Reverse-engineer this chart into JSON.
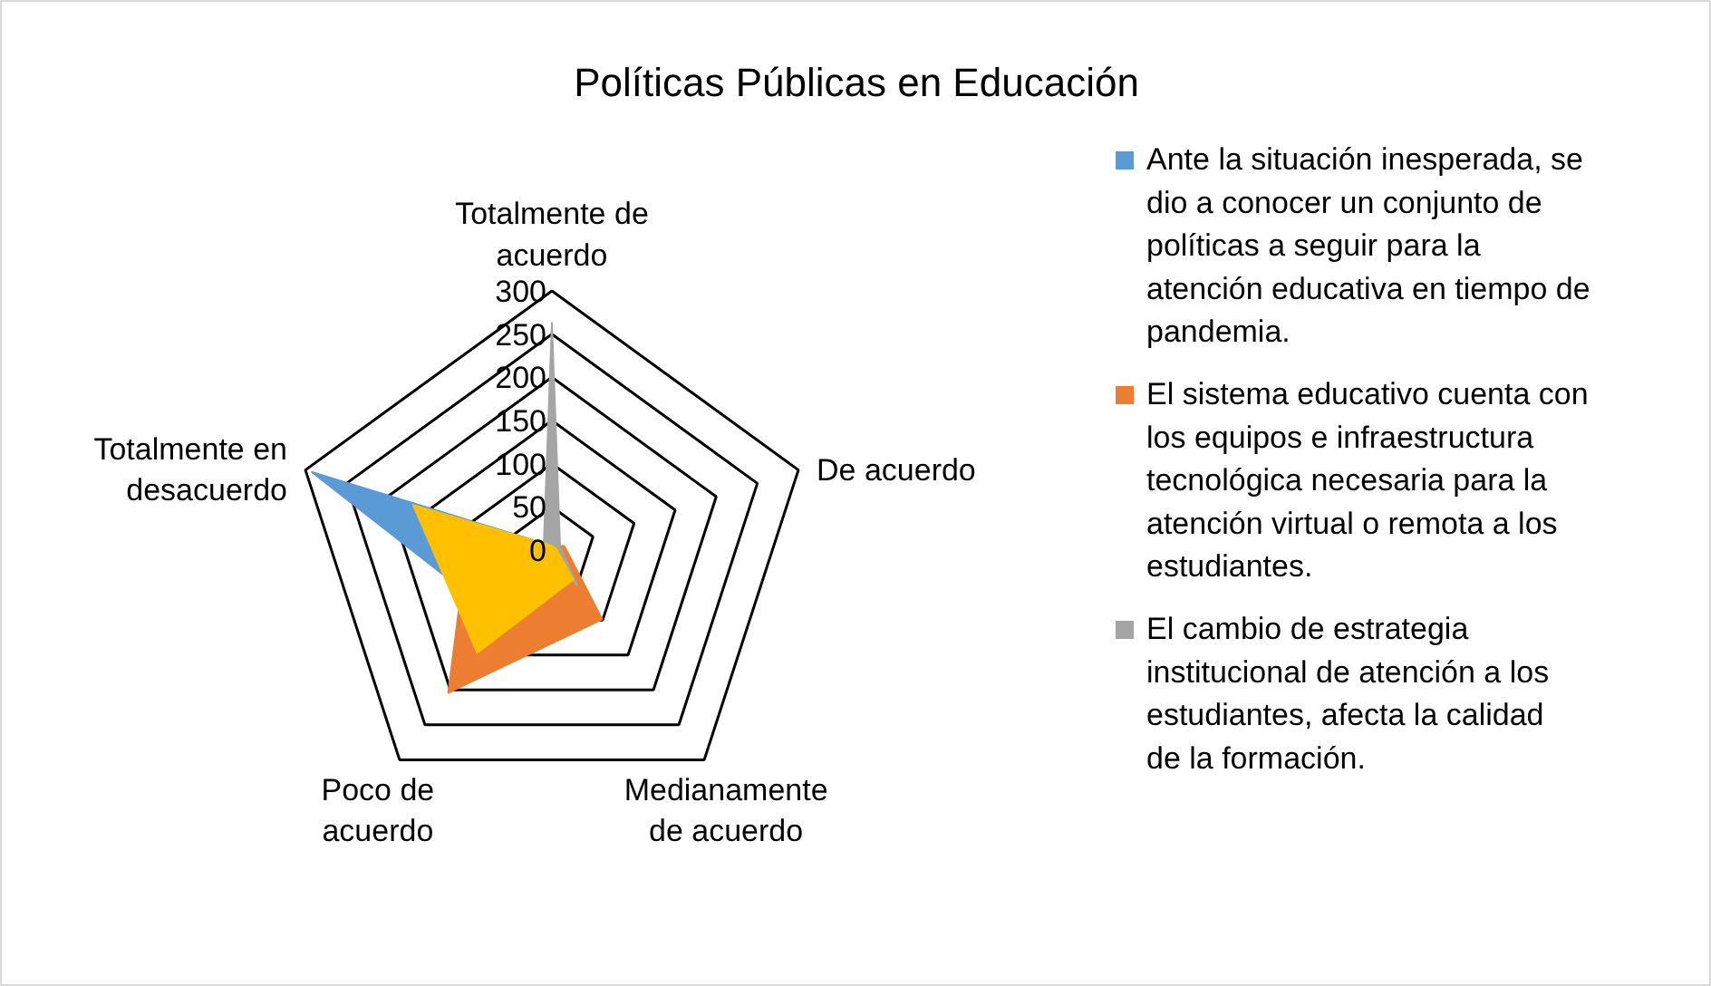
{
  "chart_data": {
    "type": "radar",
    "title": "Políticas Públicas en Educación",
    "categories": [
      "Totalmente de acuerdo",
      "De acuerdo",
      "Medianamente de acuerdo",
      "Poco de acuerdo",
      "Totalmente en desacuerdo"
    ],
    "ylim": [
      0,
      300
    ],
    "yticks": [
      0,
      50,
      100,
      150,
      200,
      250,
      300
    ],
    "grid": true,
    "legend": "right",
    "series": [
      {
        "name": "Ante la situación inesperada, se dio a conocer un conjunto de políticas a seguir para la atención educativa en tiempo de pandemia.",
        "color": "#5b9bd5",
        "values": [
          5,
          5,
          20,
          100,
          292
        ]
      },
      {
        "name": "El sistema educativo cuenta con los equipos e infraestructura tecnológica necesaria para la atención virtual o remota a los estudiantes.",
        "color": "#ed7d31",
        "values": [
          5,
          15,
          99,
          204,
          100
        ]
      },
      {
        "name": "El cambio de estrategia institucional de atención a los estudiantes, afecta la calidad de la formación.",
        "color": "#a5a5a5",
        "values": [
          263,
          10,
          50,
          10,
          10
        ]
      },
      {
        "color": "#ffc000",
        "values": [
          5,
          5,
          42,
          147,
          169
        ]
      }
    ]
  }
}
